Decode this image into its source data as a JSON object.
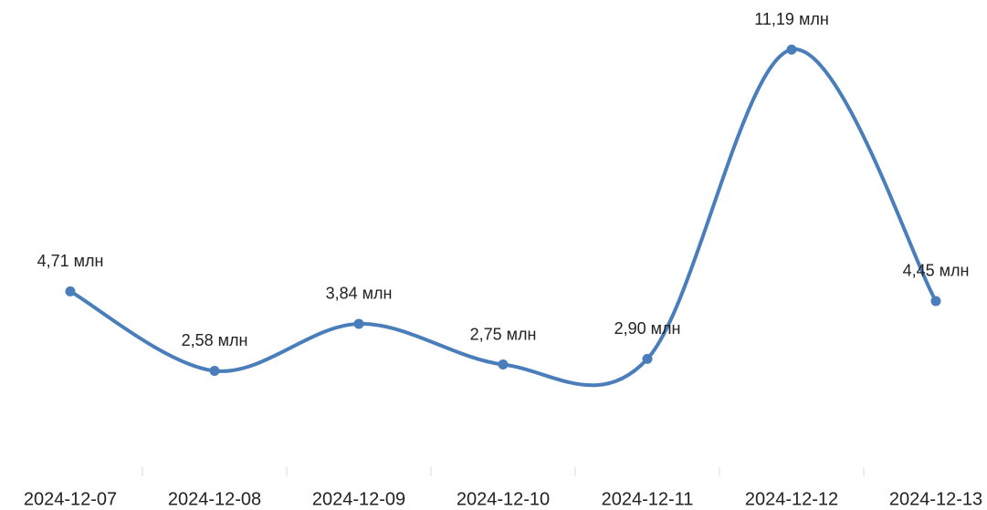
{
  "chart_data": {
    "type": "line",
    "categories": [
      "2024-12-07",
      "2024-12-08",
      "2024-12-09",
      "2024-12-10",
      "2024-12-11",
      "2024-12-12",
      "2024-12-13"
    ],
    "series": [
      {
        "color": "#4a7ebb",
        "values": [
          4.71,
          2.58,
          3.84,
          2.75,
          2.9,
          11.19,
          4.45
        ],
        "value_labels": [
          "4,71 млн",
          "2,58 млн",
          "3,84 млн",
          "2,75 млн",
          "2,90 млн",
          "11,19 млн",
          "4,45 млн"
        ]
      }
    ],
    "smooth": true
  }
}
